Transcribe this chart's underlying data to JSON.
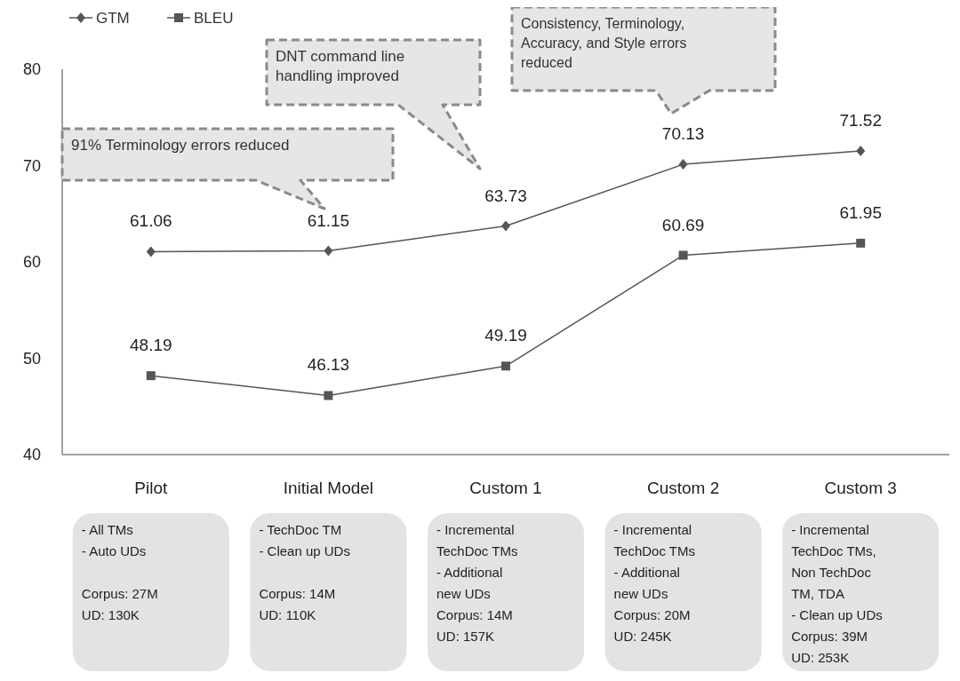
{
  "chart_data": {
    "type": "line",
    "categories": [
      "Pilot",
      "Initial Model",
      "Custom 1",
      "Custom 2",
      "Custom 3"
    ],
    "series": [
      {
        "name": "GTM",
        "color": "#555555",
        "marker": "diamond",
        "values": [
          61.06,
          61.15,
          63.73,
          70.13,
          71.52
        ]
      },
      {
        "name": "BLEU",
        "color": "#555555",
        "marker": "square",
        "values": [
          48.19,
          46.13,
          49.19,
          60.69,
          61.95
        ]
      }
    ],
    "ylim": [
      40,
      80
    ],
    "yticks": [
      40,
      50,
      60,
      70,
      80
    ],
    "grid": false,
    "legend": "top left",
    "data_labels": true,
    "annotations": [
      "91% Terminology errors reduced",
      "DNT command line\nhandling improved",
      "Consistency, Terminology,\nAccuracy, and Style errors\nreduced",
      "- All TMs\n- Auto UDs\n\nCorpus: 27M\nUD: 130K",
      "- TechDoc TM\n- Clean up UDs\n\nCorpus: 14M\nUD: 110K",
      "- Incremental\nTechDoc TMs\n- Additional\nnew UDs\nCorpus: 14M\nUD: 157K",
      "- Incremental\nTechDoc TMs\n- Additional\nnew UDs\nCorpus: 20M\nUD: 245K",
      "- Incremental\nTechDoc TMs,\nNon TechDoc\nTM, TDA\n- Clean up UDs\nCorpus: 39M\nUD: 253K"
    ]
  }
}
